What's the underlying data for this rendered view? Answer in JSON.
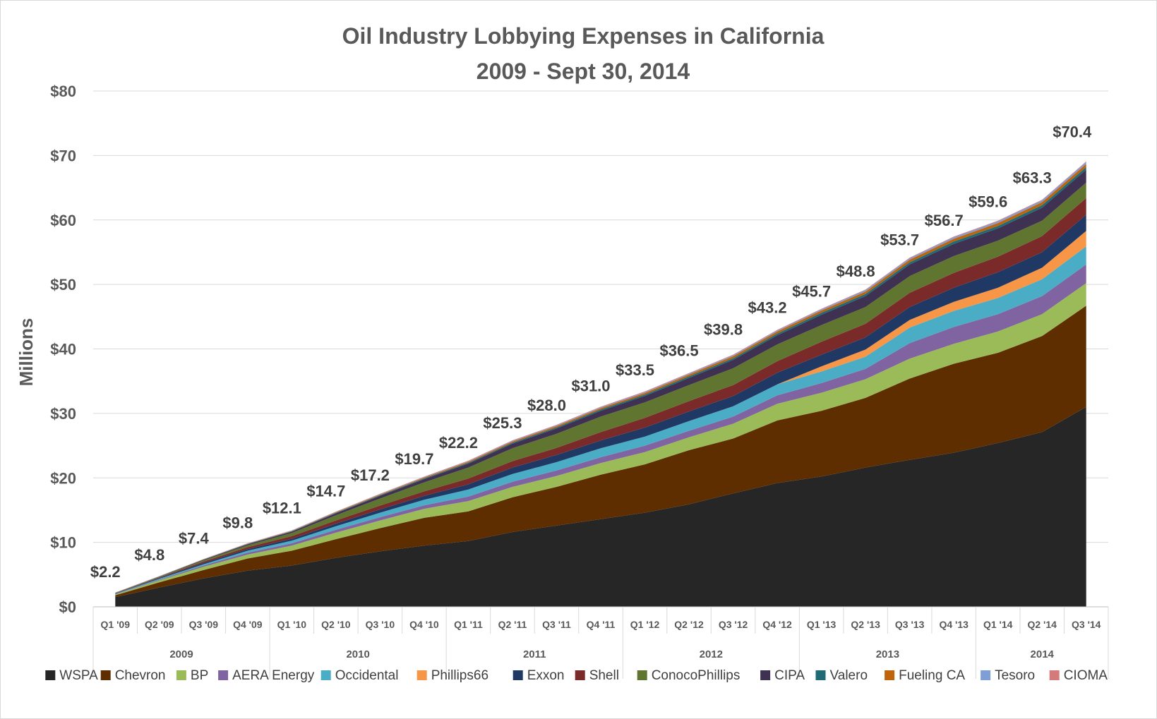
{
  "chart_data": {
    "type": "area",
    "stacked": true,
    "title": "Oil Industry Lobbying Expenses in California",
    "subtitle": "2009 - Sept 30, 2014",
    "ylabel": "Millions",
    "ylim": [
      0,
      80
    ],
    "yticks": [
      "$0",
      "$10",
      "$20",
      "$30",
      "$40",
      "$50",
      "$60",
      "$70",
      "$80"
    ],
    "grid": true,
    "legend_position": "bottom",
    "categories": [
      "Q1 '09",
      "Q2 '09",
      "Q3 '09",
      "Q4 '09",
      "Q1 '10",
      "Q2 '10",
      "Q3 '10",
      "Q4 '10",
      "Q1 '11",
      "Q2 '11",
      "Q3 '11",
      "Q4 '11",
      "Q1 '12",
      "Q2 '12",
      "Q3 '12",
      "Q4 '12",
      "Q1 '13",
      "Q2 '13",
      "Q3 '13",
      "Q4 '13",
      "Q1 '14",
      "Q2 '14",
      "Q3 '14"
    ],
    "year_groups": [
      {
        "label": "2009",
        "count": 4
      },
      {
        "label": "2010",
        "count": 4
      },
      {
        "label": "2011",
        "count": 4
      },
      {
        "label": "2012",
        "count": 4
      },
      {
        "label": "2013",
        "count": 4
      },
      {
        "label": "2014",
        "count": 3
      }
    ],
    "totals": [
      "$2.2",
      "$4.8",
      "$7.4",
      "$9.8",
      "$12.1",
      "$14.7",
      "$17.2",
      "$19.7",
      "$22.2",
      "$25.3",
      "$28.0",
      "$31.0",
      "$33.5",
      "$36.5",
      "$39.8",
      "$43.2",
      "$45.7",
      "$48.8",
      "$53.7",
      "$56.7",
      "$59.6",
      "$63.3",
      "$70.4"
    ],
    "total_values": [
      2.2,
      4.8,
      7.4,
      9.8,
      12.1,
      14.7,
      17.2,
      19.7,
      22.2,
      25.3,
      28.0,
      31.0,
      33.5,
      36.5,
      39.8,
      43.2,
      45.7,
      48.8,
      53.7,
      56.7,
      59.6,
      63.3,
      70.4
    ],
    "series": [
      {
        "name": "WSPA",
        "color": "#262626",
        "values": [
          1.5,
          3.0,
          4.4,
          5.6,
          6.4,
          7.6,
          8.6,
          9.5,
          10.2,
          11.6,
          12.6,
          13.6,
          14.6,
          15.9,
          17.6,
          19.2,
          20.2,
          21.6,
          22.8,
          23.9,
          25.4,
          27.1,
          31.0
        ]
      },
      {
        "name": "Chevron",
        "color": "#5e2e00",
        "values": [
          0.3,
          0.8,
          1.3,
          1.9,
          2.3,
          2.9,
          3.6,
          4.3,
          4.6,
          5.4,
          6.0,
          6.9,
          7.5,
          8.4,
          8.5,
          9.7,
          10.2,
          10.8,
          12.6,
          13.8,
          14.0,
          14.9,
          15.7
        ]
      },
      {
        "name": "BP",
        "color": "#9bbb59",
        "values": [
          0.1,
          0.3,
          0.5,
          0.6,
          0.8,
          1.0,
          1.2,
          1.4,
          1.6,
          1.6,
          1.7,
          1.8,
          1.9,
          2.0,
          2.3,
          2.6,
          2.8,
          2.9,
          3.1,
          3.1,
          3.3,
          3.4,
          3.5
        ]
      },
      {
        "name": "AERA Energy",
        "color": "#8064a2",
        "values": [
          0.05,
          0.1,
          0.2,
          0.3,
          0.35,
          0.45,
          0.5,
          0.55,
          0.7,
          0.8,
          0.85,
          0.9,
          1.0,
          1.0,
          1.1,
          1.3,
          1.5,
          1.6,
          2.4,
          2.6,
          2.7,
          2.8,
          2.9
        ]
      },
      {
        "name": "Occidental",
        "color": "#4bacc6",
        "values": [
          0.05,
          0.15,
          0.2,
          0.3,
          0.4,
          0.55,
          0.7,
          0.85,
          1.1,
          1.2,
          1.3,
          1.4,
          1.4,
          1.5,
          1.6,
          1.7,
          1.8,
          1.9,
          2.4,
          2.5,
          2.5,
          2.6,
          2.8
        ]
      },
      {
        "name": "Phillips66",
        "color": "#f79646",
        "values": [
          0.0,
          0.0,
          0.0,
          0.0,
          0.0,
          0.0,
          0.0,
          0.0,
          0.0,
          0.0,
          0.0,
          0.0,
          0.0,
          0.0,
          0.0,
          0.0,
          0.8,
          1.1,
          1.2,
          1.4,
          1.6,
          1.8,
          2.4
        ]
      },
      {
        "name": "Exxon",
        "color": "#1f3864",
        "values": [
          0.05,
          0.1,
          0.2,
          0.25,
          0.3,
          0.4,
          0.5,
          0.6,
          0.8,
          1.0,
          1.1,
          1.2,
          1.4,
          1.5,
          1.6,
          1.8,
          1.8,
          1.9,
          2.0,
          2.2,
          2.4,
          2.4,
          2.5
        ]
      },
      {
        "name": "Shell",
        "color": "#7b2a2a",
        "values": [
          0.05,
          0.1,
          0.2,
          0.3,
          0.4,
          0.5,
          0.6,
          0.7,
          0.9,
          1.0,
          1.1,
          1.3,
          1.5,
          1.6,
          1.7,
          1.8,
          2.0,
          2.1,
          2.2,
          2.3,
          2.4,
          2.5,
          2.6
        ]
      },
      {
        "name": "ConocoPhillips",
        "color": "#5f7530",
        "values": [
          0.05,
          0.1,
          0.2,
          0.3,
          0.5,
          0.8,
          1.1,
          1.4,
          1.7,
          2.0,
          2.2,
          2.4,
          2.4,
          2.5,
          2.6,
          2.6,
          2.6,
          2.6,
          2.6,
          2.6,
          2.5,
          2.4,
          2.4
        ]
      },
      {
        "name": "CIPA",
        "color": "#3f3151",
        "values": [
          0.02,
          0.05,
          0.1,
          0.15,
          0.2,
          0.3,
          0.4,
          0.5,
          0.6,
          0.7,
          0.8,
          0.9,
          1.0,
          1.1,
          1.3,
          1.4,
          1.6,
          1.7,
          1.8,
          1.9,
          1.9,
          2.0,
          2.0
        ]
      },
      {
        "name": "Valero",
        "color": "#1f6b75",
        "values": [
          0.01,
          0.02,
          0.03,
          0.05,
          0.06,
          0.08,
          0.1,
          0.12,
          0.14,
          0.16,
          0.18,
          0.2,
          0.22,
          0.24,
          0.26,
          0.28,
          0.3,
          0.32,
          0.34,
          0.36,
          0.38,
          0.4,
          0.4
        ]
      },
      {
        "name": "Fueling CA",
        "color": "#c0640c",
        "values": [
          0.01,
          0.02,
          0.03,
          0.04,
          0.06,
          0.08,
          0.1,
          0.12,
          0.15,
          0.18,
          0.2,
          0.22,
          0.25,
          0.28,
          0.3,
          0.32,
          0.35,
          0.38,
          0.4,
          0.42,
          0.44,
          0.46,
          0.48
        ]
      },
      {
        "name": "Tesoro",
        "color": "#7f9ed6",
        "values": [
          0.01,
          0.02,
          0.03,
          0.04,
          0.05,
          0.06,
          0.07,
          0.08,
          0.09,
          0.1,
          0.11,
          0.12,
          0.13,
          0.14,
          0.15,
          0.16,
          0.18,
          0.2,
          0.22,
          0.24,
          0.26,
          0.28,
          0.3
        ]
      },
      {
        "name": "CIOMA",
        "color": "#d47a7a",
        "values": [
          0.01,
          0.01,
          0.02,
          0.03,
          0.04,
          0.05,
          0.06,
          0.07,
          0.08,
          0.09,
          0.1,
          0.1,
          0.1,
          0.1,
          0.1,
          0.1,
          0.1,
          0.1,
          0.1,
          0.1,
          0.1,
          0.1,
          0.1
        ]
      }
    ]
  }
}
